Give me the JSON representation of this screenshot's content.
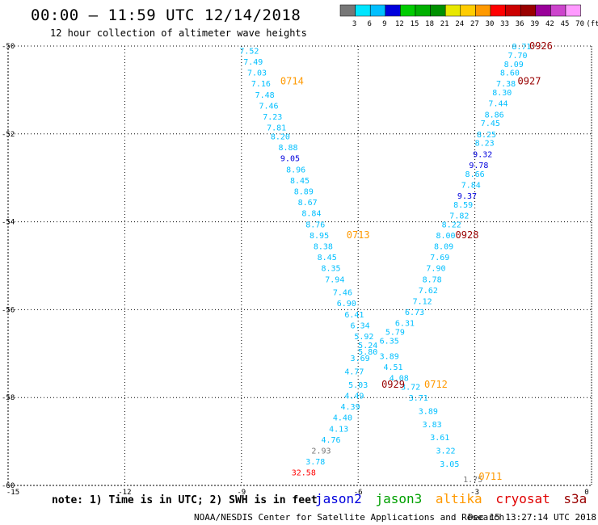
{
  "header": {
    "title": "00:00 – 11:59 UTC 12/14/2018",
    "subtitle": "12 hour collection of altimeter wave heights"
  },
  "footer": {
    "note": "note: 1) Time is in UTC; 2) SWH is in feet",
    "credit": "NOAA/NESDIS Center for Satellite Applications and Research",
    "timestamp": "Dec 15 13:27:14 UTC 2018"
  },
  "satellites": [
    {
      "name": "jason2",
      "color": "#0000dd"
    },
    {
      "name": "jason3",
      "color": "#00a000"
    },
    {
      "name": "altika",
      "color": "#ff9900"
    },
    {
      "name": "cryosat",
      "color": "#e00000"
    },
    {
      "name": "s3a",
      "color": "#990000"
    }
  ],
  "colorbar": {
    "labels": [
      "3",
      "6",
      "9",
      "12",
      "15",
      "18",
      "21",
      "24",
      "27",
      "30",
      "33",
      "36",
      "39",
      "42",
      "45",
      "70",
      "(ft)"
    ],
    "colors": [
      "#777777",
      "#00e5ff",
      "#00bfff",
      "#0000dd",
      "#00cc00",
      "#00b000",
      "#009000",
      "#e8e800",
      "#ffcc00",
      "#ff9900",
      "#ff0000",
      "#cc0000",
      "#990000",
      "#990099",
      "#cc44cc",
      "#ff99ff"
    ]
  },
  "chart_data": {
    "type": "scatter",
    "xlim": [
      -15,
      0
    ],
    "ylim": [
      -60,
      -50
    ],
    "x_ticks": [
      "-15",
      "-12",
      "-9",
      "-6",
      "-3",
      "0"
    ],
    "y_ticks": [
      "-50",
      "-52",
      "-54",
      "-56",
      "-58",
      "-60"
    ],
    "grid": true,
    "passes": [
      {
        "label": "0926",
        "color": "#990000",
        "x": -1.3,
        "y": -50.0
      },
      {
        "label": "0927",
        "color": "#990000",
        "x": -1.6,
        "y": -50.8
      },
      {
        "label": "0714",
        "color": "#ff9900",
        "x": -7.7,
        "y": -50.8
      },
      {
        "label": "0713",
        "color": "#ff9900",
        "x": -6.0,
        "y": -54.3
      },
      {
        "label": "0928",
        "color": "#990000",
        "x": -3.2,
        "y": -54.3
      },
      {
        "label": "0712",
        "color": "#ff9900",
        "x": -4.0,
        "y": -57.7
      },
      {
        "label": "0929",
        "color": "#990000",
        "x": -5.1,
        "y": -57.7
      },
      {
        "label": "0711",
        "color": "#ff9900",
        "x": -2.6,
        "y": -59.8
      }
    ],
    "points": [
      {
        "v": "7.52",
        "x": -8.8,
        "y": -50.1,
        "c": "#00bfff"
      },
      {
        "v": "7.49",
        "x": -8.7,
        "y": -50.35,
        "c": "#00bfff"
      },
      {
        "v": "7.03",
        "x": -8.6,
        "y": -50.6,
        "c": "#00bfff"
      },
      {
        "v": "7.16",
        "x": -8.5,
        "y": -50.85,
        "c": "#00bfff"
      },
      {
        "v": "7.48",
        "x": -8.4,
        "y": -51.1,
        "c": "#00bfff"
      },
      {
        "v": "7.46",
        "x": -8.3,
        "y": -51.35,
        "c": "#00bfff"
      },
      {
        "v": "7.23",
        "x": -8.2,
        "y": -51.6,
        "c": "#00bfff"
      },
      {
        "v": "7.81",
        "x": -8.1,
        "y": -51.85,
        "c": "#00bfff"
      },
      {
        "v": "8.20",
        "x": -8.0,
        "y": -52.05,
        "c": "#00bfff"
      },
      {
        "v": "8.88",
        "x": -7.8,
        "y": -52.3,
        "c": "#00bfff"
      },
      {
        "v": "9.05",
        "x": -7.75,
        "y": -52.55,
        "c": "#0000dd"
      },
      {
        "v": "8.96",
        "x": -7.6,
        "y": -52.8,
        "c": "#00bfff"
      },
      {
        "v": "8.45",
        "x": -7.5,
        "y": -53.05,
        "c": "#00bfff"
      },
      {
        "v": "8.89",
        "x": -7.4,
        "y": -53.3,
        "c": "#00bfff"
      },
      {
        "v": "8.67",
        "x": -7.3,
        "y": -53.55,
        "c": "#00bfff"
      },
      {
        "v": "8.84",
        "x": -7.2,
        "y": -53.8,
        "c": "#00bfff"
      },
      {
        "v": "8.76",
        "x": -7.1,
        "y": -54.05,
        "c": "#00bfff"
      },
      {
        "v": "8.95",
        "x": -7.0,
        "y": -54.3,
        "c": "#00bfff"
      },
      {
        "v": "8.38",
        "x": -6.9,
        "y": -54.55,
        "c": "#00bfff"
      },
      {
        "v": "8.45",
        "x": -6.8,
        "y": -54.8,
        "c": "#00bfff"
      },
      {
        "v": "8.35",
        "x": -6.7,
        "y": -55.05,
        "c": "#00bfff"
      },
      {
        "v": "7.94",
        "x": -6.6,
        "y": -55.3,
        "c": "#00bfff"
      },
      {
        "v": "7.46",
        "x": -6.4,
        "y": -55.6,
        "c": "#00bfff"
      },
      {
        "v": "6.90",
        "x": -6.3,
        "y": -55.85,
        "c": "#00bfff"
      },
      {
        "v": "6.41",
        "x": -6.1,
        "y": -56.1,
        "c": "#00bfff"
      },
      {
        "v": "6.34",
        "x": -5.95,
        "y": -56.35,
        "c": "#00bfff"
      },
      {
        "v": "5.92",
        "x": -5.85,
        "y": -56.6,
        "c": "#00bfff"
      },
      {
        "v": "5.24",
        "x": -5.75,
        "y": -56.8,
        "c": "#00bfff"
      },
      {
        "v": "5.80",
        "x": -5.75,
        "y": -56.95,
        "c": "#00bfff"
      },
      {
        "v": "3.69",
        "x": -5.95,
        "y": -57.1,
        "c": "#00bfff"
      },
      {
        "v": "4.77",
        "x": -6.1,
        "y": -57.4,
        "c": "#00bfff"
      },
      {
        "v": "5.03",
        "x": -6.0,
        "y": -57.7,
        "c": "#00bfff"
      },
      {
        "v": "4.49",
        "x": -6.1,
        "y": -57.95,
        "c": "#00bfff"
      },
      {
        "v": "4.39",
        "x": -6.2,
        "y": -58.2,
        "c": "#00bfff"
      },
      {
        "v": "4.40",
        "x": -6.4,
        "y": -58.45,
        "c": "#00bfff"
      },
      {
        "v": "4.13",
        "x": -6.5,
        "y": -58.7,
        "c": "#00bfff"
      },
      {
        "v": "4.76",
        "x": -6.7,
        "y": -58.95,
        "c": "#00bfff"
      },
      {
        "v": "2.93",
        "x": -6.95,
        "y": -59.2,
        "c": "#777777"
      },
      {
        "v": "3.78",
        "x": -7.1,
        "y": -59.45,
        "c": "#00bfff"
      },
      {
        "v": "32.58",
        "x": -7.4,
        "y": -59.7,
        "c": "#ff0000"
      },
      {
        "v": "8.71",
        "x": -1.8,
        "y": -50.0,
        "c": "#00bfff"
      },
      {
        "v": "7.70",
        "x": -1.9,
        "y": -50.2,
        "c": "#00bfff"
      },
      {
        "v": "8.09",
        "x": -2.0,
        "y": -50.4,
        "c": "#00bfff"
      },
      {
        "v": "8.60",
        "x": -2.1,
        "y": -50.6,
        "c": "#00bfff"
      },
      {
        "v": "7.38",
        "x": -2.2,
        "y": -50.85,
        "c": "#00bfff"
      },
      {
        "v": "8.30",
        "x": -2.3,
        "y": -51.05,
        "c": "#00bfff"
      },
      {
        "v": "7.44",
        "x": -2.4,
        "y": -51.3,
        "c": "#00bfff"
      },
      {
        "v": "8.86",
        "x": -2.5,
        "y": -51.55,
        "c": "#00bfff"
      },
      {
        "v": "7.45",
        "x": -2.6,
        "y": -51.75,
        "c": "#00bfff"
      },
      {
        "v": "8.25",
        "x": -2.7,
        "y": -52.0,
        "c": "#00bfff"
      },
      {
        "v": "8.23",
        "x": -2.75,
        "y": -52.2,
        "c": "#00bfff"
      },
      {
        "v": "9.32",
        "x": -2.8,
        "y": -52.45,
        "c": "#0000dd"
      },
      {
        "v": "9.78",
        "x": -2.9,
        "y": -52.7,
        "c": "#0000dd"
      },
      {
        "v": "8.66",
        "x": -3.0,
        "y": -52.9,
        "c": "#00bfff"
      },
      {
        "v": "7.84",
        "x": -3.1,
        "y": -53.15,
        "c": "#00bfff"
      },
      {
        "v": "9.37",
        "x": -3.2,
        "y": -53.4,
        "c": "#0000dd"
      },
      {
        "v": "8.59",
        "x": -3.3,
        "y": -53.6,
        "c": "#00bfff"
      },
      {
        "v": "7.82",
        "x": -3.4,
        "y": -53.85,
        "c": "#00bfff"
      },
      {
        "v": "8.22",
        "x": -3.6,
        "y": -54.05,
        "c": "#00bfff"
      },
      {
        "v": "8.00",
        "x": -3.75,
        "y": -54.3,
        "c": "#00bfff"
      },
      {
        "v": "8.09",
        "x": -3.8,
        "y": -54.55,
        "c": "#00bfff"
      },
      {
        "v": "7.69",
        "x": -3.9,
        "y": -54.8,
        "c": "#00bfff"
      },
      {
        "v": "7.90",
        "x": -4.0,
        "y": -55.05,
        "c": "#00bfff"
      },
      {
        "v": "8.78",
        "x": -4.1,
        "y": -55.3,
        "c": "#00bfff"
      },
      {
        "v": "7.62",
        "x": -4.2,
        "y": -55.55,
        "c": "#00bfff"
      },
      {
        "v": "7.12",
        "x": -4.35,
        "y": -55.8,
        "c": "#00bfff"
      },
      {
        "v": "6.73",
        "x": -4.55,
        "y": -56.05,
        "c": "#00bfff"
      },
      {
        "v": "6.31",
        "x": -4.8,
        "y": -56.3,
        "c": "#00bfff"
      },
      {
        "v": "5.79",
        "x": -5.05,
        "y": -56.5,
        "c": "#00bfff"
      },
      {
        "v": "6.35",
        "x": -5.2,
        "y": -56.7,
        "c": "#00bfff"
      },
      {
        "v": "3.89",
        "x": -5.2,
        "y": -57.05,
        "c": "#00bfff"
      },
      {
        "v": "4.51",
        "x": -5.1,
        "y": -57.3,
        "c": "#00bfff"
      },
      {
        "v": "4.08",
        "x": -4.95,
        "y": -57.55,
        "c": "#00bfff"
      },
      {
        "v": "3.72",
        "x": -4.65,
        "y": -57.75,
        "c": "#00bfff"
      },
      {
        "v": "3.71",
        "x": -4.45,
        "y": -58.0,
        "c": "#00bfff"
      },
      {
        "v": "3.89",
        "x": -4.2,
        "y": -58.3,
        "c": "#00bfff"
      },
      {
        "v": "3.83",
        "x": -4.1,
        "y": -58.6,
        "c": "#00bfff"
      },
      {
        "v": "3.61",
        "x": -3.9,
        "y": -58.9,
        "c": "#00bfff"
      },
      {
        "v": "3.22",
        "x": -3.75,
        "y": -59.2,
        "c": "#00bfff"
      },
      {
        "v": "3.05",
        "x": -3.65,
        "y": -59.5,
        "c": "#00bfff"
      },
      {
        "v": "1.75",
        "x": -3.05,
        "y": -59.85,
        "c": "#777777"
      }
    ]
  }
}
